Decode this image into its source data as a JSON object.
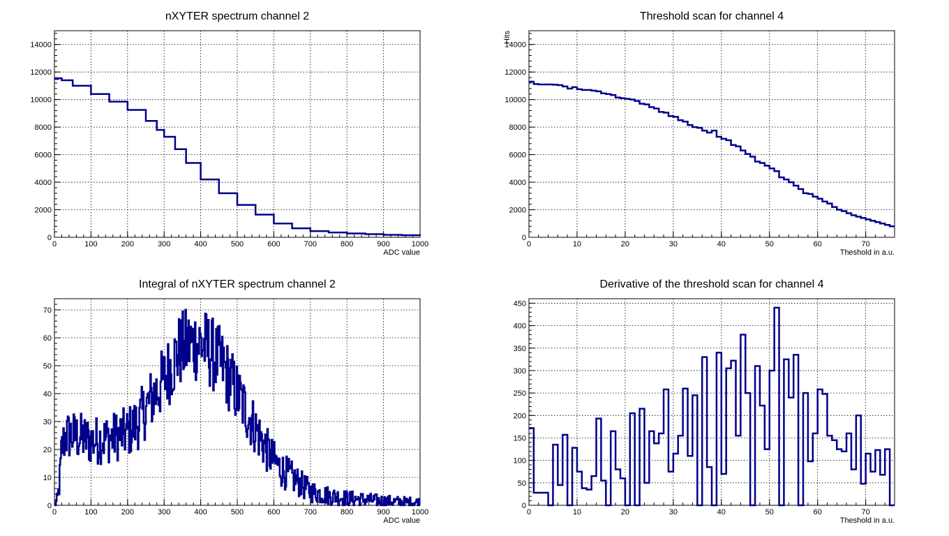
{
  "chart_data": [
    {
      "type": "line",
      "title": "nXYTER spectrum channel 2",
      "xlabel": "ADC value",
      "ylabel": "",
      "xlim": [
        0,
        1000
      ],
      "ylim": [
        0,
        15000
      ],
      "xticks": [
        0,
        100,
        200,
        300,
        400,
        500,
        600,
        700,
        800,
        900,
        1000
      ],
      "yticks": [
        0,
        2000,
        4000,
        6000,
        8000,
        10000,
        12000,
        14000
      ],
      "grid": true,
      "series": [
        {
          "style": "step",
          "x": [
            0,
            10,
            20,
            50,
            100,
            150,
            200,
            250,
            280,
            300,
            330,
            360,
            400,
            450,
            500,
            550,
            600,
            650,
            700,
            750,
            800,
            850,
            900,
            950,
            1000
          ],
          "y": [
            11500,
            11550,
            11400,
            11000,
            10400,
            9850,
            9250,
            8450,
            7800,
            7300,
            6400,
            5400,
            4200,
            3200,
            2350,
            1650,
            1000,
            650,
            450,
            350,
            280,
            230,
            180,
            150,
            130
          ]
        }
      ]
    },
    {
      "type": "line",
      "title": "Threshold scan for channel 4",
      "xlabel": "Theshold in a.u.",
      "ylabel": "Hits",
      "xlim": [
        0,
        76
      ],
      "ylim": [
        0,
        15000
      ],
      "xticks": [
        0,
        10,
        20,
        30,
        40,
        50,
        60,
        70
      ],
      "yticks": [
        0,
        2000,
        4000,
        6000,
        8000,
        10000,
        12000,
        14000
      ],
      "grid": true,
      "series": [
        {
          "style": "step",
          "x": [
            0,
            1,
            2,
            3,
            4,
            5,
            6,
            7,
            8,
            9,
            10,
            11,
            12,
            13,
            14,
            15,
            16,
            17,
            18,
            19,
            20,
            21,
            22,
            23,
            24,
            25,
            26,
            27,
            28,
            29,
            30,
            31,
            32,
            33,
            34,
            35,
            36,
            37,
            38,
            39,
            40,
            41,
            42,
            43,
            44,
            45,
            46,
            47,
            48,
            49,
            50,
            51,
            52,
            53,
            54,
            55,
            56,
            57,
            58,
            59,
            60,
            61,
            62,
            63,
            64,
            65,
            66,
            67,
            68,
            69,
            70,
            71,
            72,
            73,
            74,
            75
          ],
          "y": [
            11300,
            11130,
            11100,
            11100,
            11100,
            11080,
            11050,
            10950,
            10800,
            10900,
            10750,
            10700,
            10700,
            10650,
            10600,
            10450,
            10400,
            10330,
            10150,
            10100,
            10050,
            10000,
            9900,
            9700,
            9650,
            9450,
            9350,
            9100,
            9050,
            8800,
            8750,
            8500,
            8400,
            8150,
            8000,
            7950,
            7750,
            7600,
            7750,
            7300,
            7150,
            7050,
            6700,
            6600,
            6300,
            6050,
            5850,
            5500,
            5400,
            5200,
            5000,
            4800,
            4350,
            4200,
            4000,
            3750,
            3500,
            3200,
            3150,
            2950,
            2800,
            2600,
            2450,
            2200,
            2000,
            1900,
            1750,
            1600,
            1500,
            1400,
            1300,
            1200,
            1100,
            1000,
            900,
            800
          ]
        }
      ]
    },
    {
      "type": "line",
      "title": "Integral of nXYTER spectrum channel 2",
      "xlabel": "ADC value",
      "ylabel": "",
      "xlim": [
        0,
        1000
      ],
      "ylim": [
        0,
        74
      ],
      "xticks": [
        0,
        100,
        200,
        300,
        400,
        500,
        600,
        700,
        800,
        900,
        1000
      ],
      "yticks": [
        0,
        10,
        20,
        30,
        40,
        50,
        60,
        70
      ],
      "grid": true,
      "series": [
        {
          "style": "noisy-step",
          "x": [
            0,
            5,
            10,
            15,
            20,
            30,
            50,
            80,
            100,
            150,
            200,
            230,
            260,
            290,
            320,
            340,
            360,
            380,
            400,
            420,
            440,
            460,
            480,
            500,
            520,
            540,
            560,
            580,
            600,
            620,
            650,
            680,
            700,
            750,
            800,
            850,
            900,
            950,
            1000
          ],
          "y": [
            0,
            1,
            3,
            10,
            20,
            25,
            25,
            24,
            23,
            24,
            26,
            30,
            37,
            43,
            50,
            55,
            57,
            58,
            58,
            56,
            53,
            50,
            45,
            40,
            35,
            30,
            25,
            20,
            16,
            13,
            10,
            7,
            5,
            3.5,
            2.5,
            2,
            1.5,
            1.2,
            1
          ]
        }
      ]
    },
    {
      "type": "line",
      "title": "Derivative of the threshold scan for channel 4",
      "xlabel": "Theshold in a.u.",
      "ylabel": "",
      "xlim": [
        0,
        76
      ],
      "ylim": [
        0,
        460
      ],
      "xticks": [
        0,
        10,
        20,
        30,
        40,
        50,
        60,
        70
      ],
      "yticks": [
        0,
        50,
        100,
        150,
        200,
        250,
        300,
        350,
        400,
        450
      ],
      "grid": true,
      "series": [
        {
          "style": "step",
          "x": [
            0,
            1,
            2,
            3,
            4,
            5,
            6,
            7,
            8,
            9,
            10,
            11,
            12,
            13,
            14,
            15,
            16,
            17,
            18,
            19,
            20,
            21,
            22,
            23,
            24,
            25,
            26,
            27,
            28,
            29,
            30,
            31,
            32,
            33,
            34,
            35,
            36,
            37,
            38,
            39,
            40,
            41,
            42,
            43,
            44,
            45,
            46,
            47,
            48,
            49,
            50,
            51,
            52,
            53,
            54,
            55,
            56,
            57,
            58,
            59,
            60,
            61,
            62,
            63,
            64,
            65,
            66,
            67,
            68,
            69,
            70,
            71,
            72,
            73,
            74,
            75
          ],
          "y": [
            172,
            28,
            28,
            28,
            0,
            135,
            45,
            157,
            0,
            128,
            75,
            38,
            35,
            65,
            193,
            55,
            0,
            165,
            80,
            60,
            0,
            205,
            0,
            215,
            50,
            165,
            138,
            160,
            258,
            75,
            115,
            155,
            260,
            110,
            245,
            0,
            330,
            85,
            0,
            340,
            70,
            305,
            322,
            155,
            380,
            250,
            0,
            310,
            222,
            125,
            300,
            440,
            0,
            325,
            240,
            335,
            0,
            250,
            98,
            160,
            258,
            248,
            155,
            145,
            125,
            120,
            160,
            80,
            200,
            48,
            115,
            75,
            123,
            68,
            125,
            0
          ]
        }
      ]
    }
  ]
}
